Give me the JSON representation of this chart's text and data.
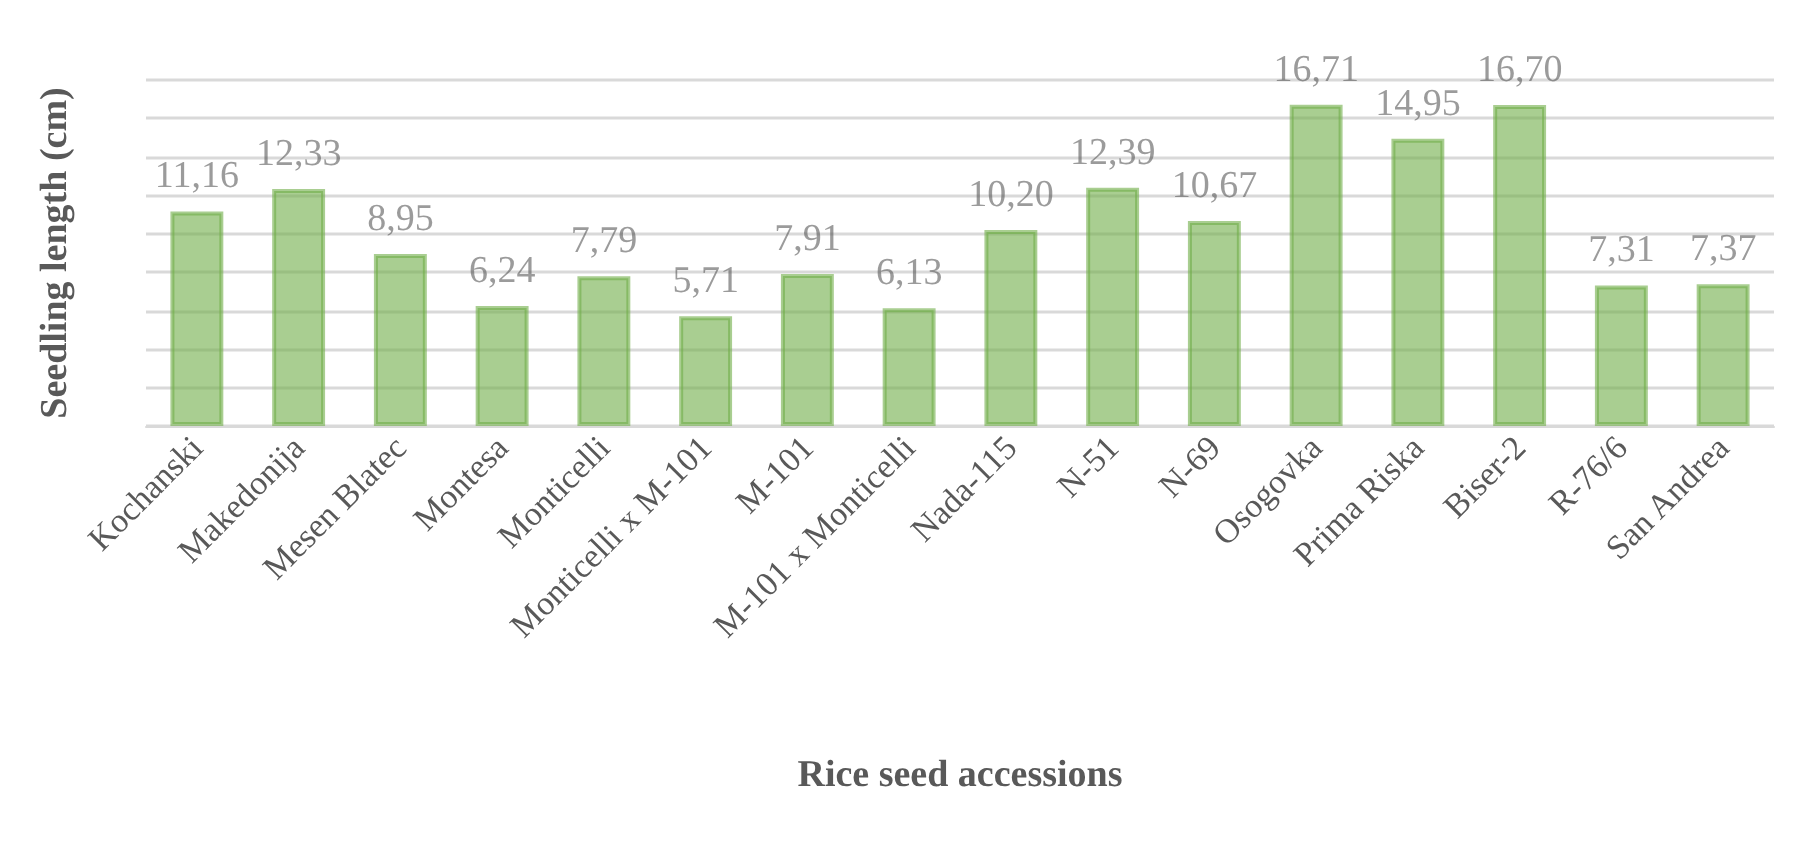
{
  "chart_data": {
    "type": "bar",
    "xlabel": "Rice seed accessions",
    "ylabel": "Seedling length (cm)",
    "categories": [
      "Kochanski",
      "Makedonija",
      "Mesen Blatec",
      "Montesa",
      "Monticelli",
      "Monticelli x M-101",
      "M-101",
      "M-101 x Monticelli",
      "Nada-115",
      "N-51",
      "N-69",
      "Osogovka",
      "Prima Riska",
      "Biser-2",
      "R-76/6",
      "San Andrea"
    ],
    "values": [
      11.16,
      12.33,
      8.95,
      6.24,
      7.79,
      5.71,
      7.91,
      6.13,
      10.2,
      12.39,
      10.67,
      16.71,
      14.95,
      16.7,
      7.31,
      7.37
    ],
    "value_labels": [
      "11,16",
      "12,33",
      "8,95",
      "6,24",
      "7,79",
      "5,71",
      "7,91",
      "6,13",
      "10,20",
      "12,39",
      "10,67",
      "16,71",
      "14,95",
      "16,70",
      "7,31",
      "7,37"
    ],
    "color": "#70ad47",
    "ylim": [
      0,
      18
    ],
    "grid": "y",
    "tick_labels": "x"
  }
}
